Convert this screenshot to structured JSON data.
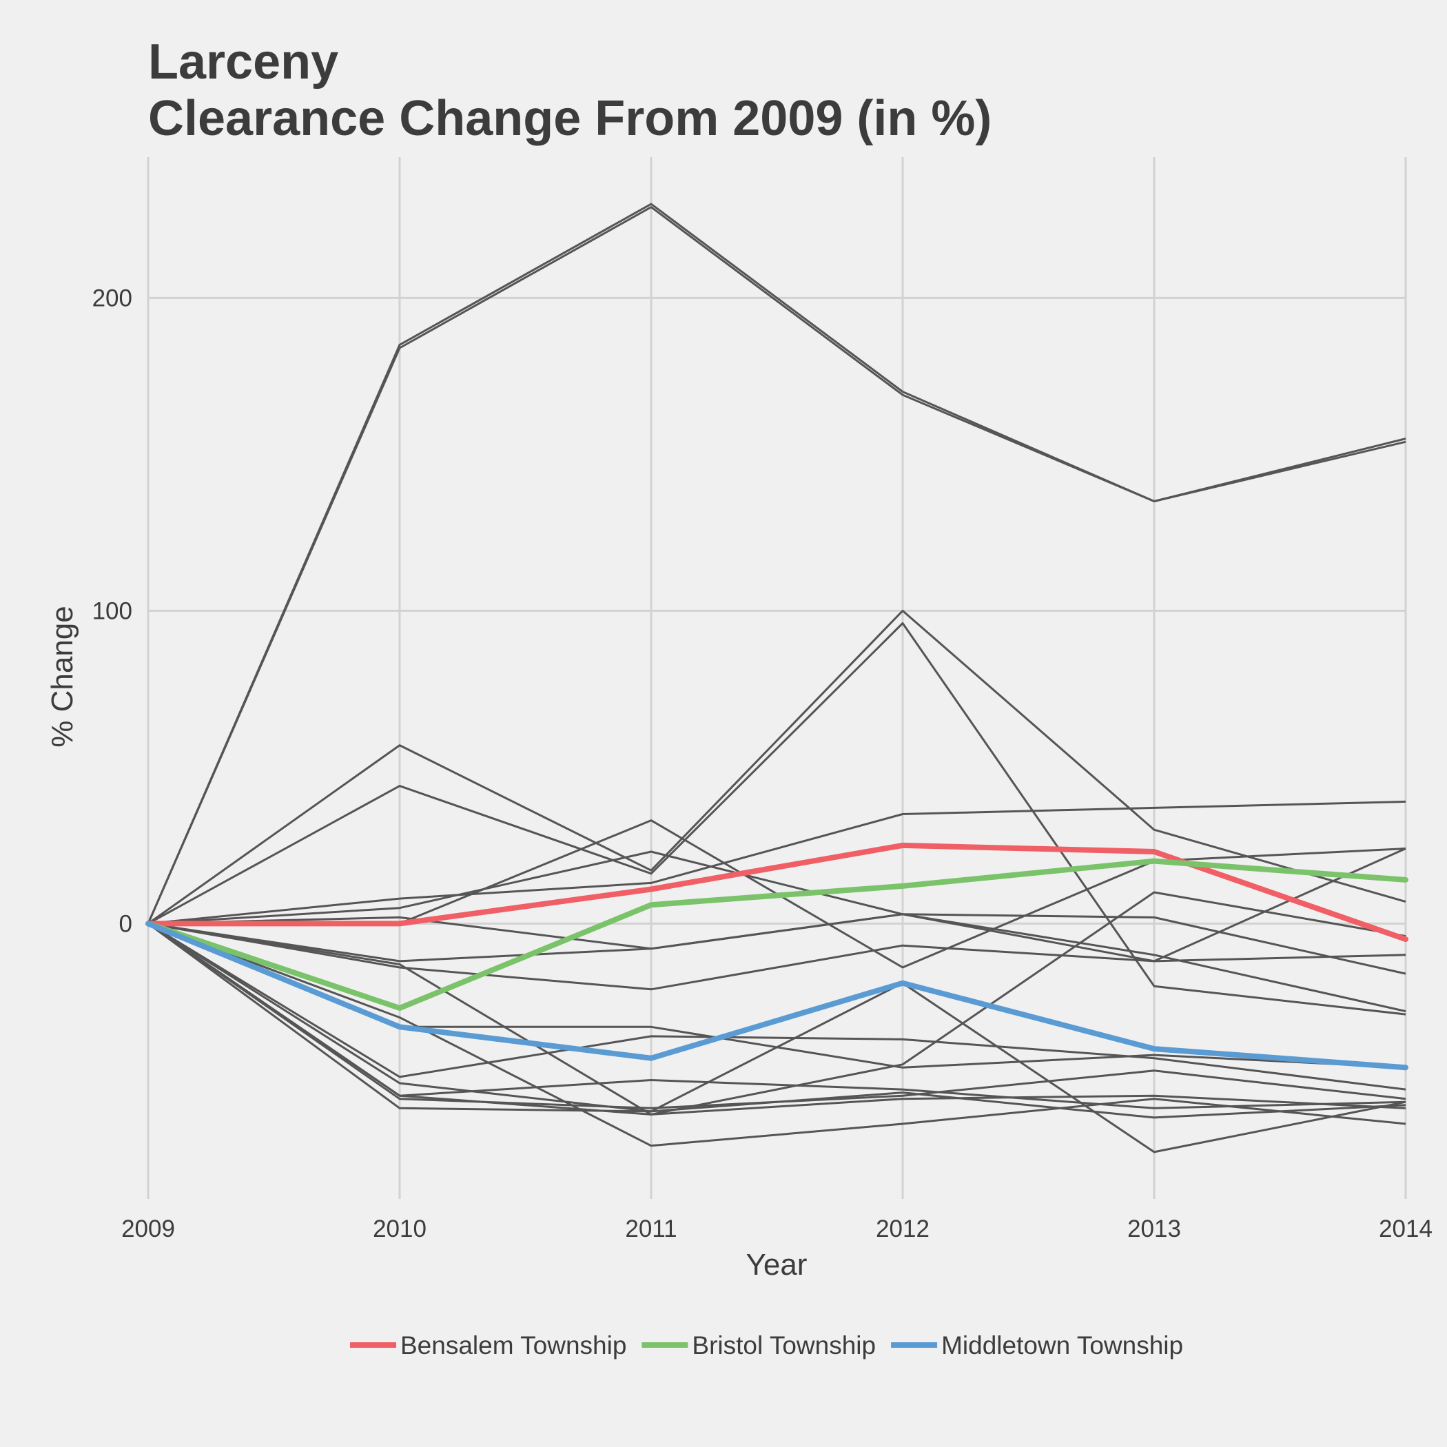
{
  "chart_data": {
    "type": "line",
    "title": "Larceny",
    "subtitle": "Clearance Change From 2009 (in %)",
    "xlabel": "Year",
    "ylabel": "% Change",
    "x": [
      2009,
      2010,
      2011,
      2012,
      2013,
      2014
    ],
    "xlim": [
      2009,
      2014
    ],
    "ylim": [
      -88,
      245
    ],
    "y_ticks": [
      0,
      100,
      200
    ],
    "grid": true,
    "legend_position": "bottom",
    "highlight_series": [
      {
        "name": "Bensalem Township",
        "color": "#f05f65",
        "values": [
          0,
          0,
          11,
          25,
          23,
          -5
        ]
      },
      {
        "name": "Bristol Township",
        "color": "#7ac36a",
        "values": [
          0,
          -27,
          6,
          12,
          20,
          14
        ]
      },
      {
        "name": "Middletown Township",
        "color": "#5a9bd4",
        "values": [
          0,
          -33,
          -43,
          -19,
          -40,
          -46
        ]
      }
    ],
    "background_series_color": "#555555",
    "background_series": [
      [
        0,
        185,
        230,
        170,
        135,
        155
      ],
      [
        0,
        184,
        229,
        169,
        135,
        154
      ],
      [
        0,
        57,
        17,
        100,
        30,
        7
      ],
      [
        0,
        44,
        16,
        96,
        -20,
        -29
      ],
      [
        0,
        8,
        13,
        35,
        37,
        39
      ],
      [
        0,
        0,
        33,
        -14,
        20,
        24
      ],
      [
        0,
        5,
        23,
        3,
        -10,
        -28
      ],
      [
        0,
        2,
        -8,
        3,
        2,
        -16
      ],
      [
        0,
        -12,
        -8,
        3,
        -12,
        -10
      ],
      [
        0,
        -14,
        -21,
        -7,
        -12,
        24
      ],
      [
        0,
        -33,
        -33,
        -46,
        -42,
        -46
      ],
      [
        0,
        -13,
        -61,
        -45,
        10,
        -4
      ],
      [
        0,
        -49,
        -36,
        -37,
        -43,
        -53
      ],
      [
        0,
        -51,
        -60,
        -54,
        -62,
        -58
      ],
      [
        0,
        -55,
        -50,
        -53,
        -59,
        -57
      ],
      [
        0,
        -56,
        -59,
        -55,
        -47,
        -56
      ],
      [
        0,
        -59,
        -60,
        -19,
        -73,
        -57
      ],
      [
        0,
        -30,
        -71,
        -64,
        -56,
        -64
      ],
      [
        0,
        -55,
        -61,
        -56,
        -55,
        -59
      ]
    ]
  }
}
